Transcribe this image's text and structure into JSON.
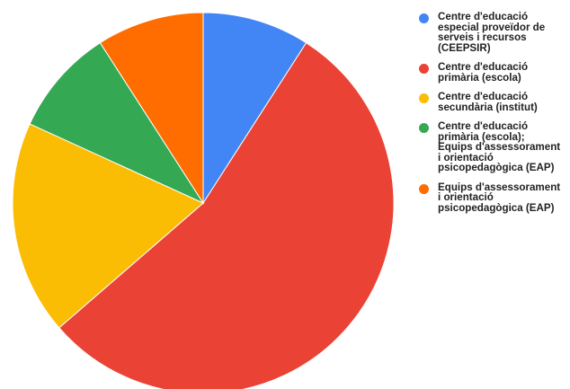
{
  "chart_data": {
    "type": "pie",
    "start_angle_deg": 0,
    "direction": "clockwise",
    "legend_position": "right",
    "slices": [
      {
        "label": "Centre d'educació\nespecial proveïdor de\nserveis i recursos\n(CEEPSIR)",
        "value": 1,
        "color": "#4285F4"
      },
      {
        "label": "Centre d'educació\nprimària (escola)",
        "value": 6,
        "color": "#EA4335"
      },
      {
        "label": "Centre d'educació\nsecundària (institut)",
        "value": 2,
        "color": "#FBBC04"
      },
      {
        "label": "Centre d'educació\nprimària (escola);\nEquips d'assessorament\ni orientació\npsicopedagògica (EAP)",
        "value": 1,
        "color": "#34A853"
      },
      {
        "label": "Equips d'assessorament\ni orientació\npsicopedagògica (EAP)",
        "value": 1,
        "color": "#FF6D01"
      }
    ]
  }
}
